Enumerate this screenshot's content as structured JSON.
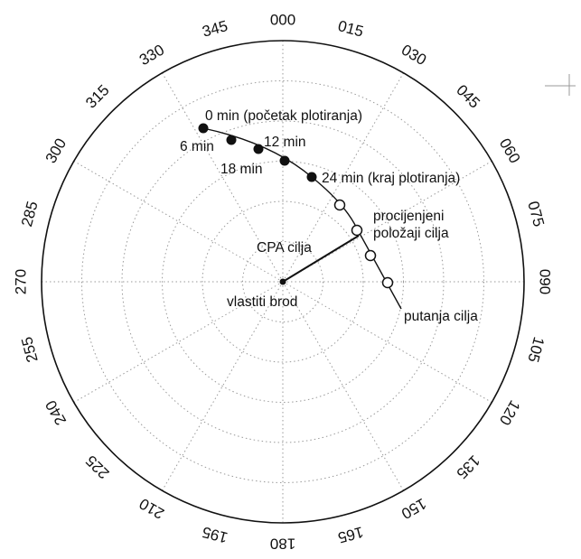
{
  "bearing_labels": [
    "000",
    "015",
    "030",
    "045",
    "060",
    "075",
    "090",
    "105",
    "120",
    "135",
    "150",
    "165",
    "180",
    "195",
    "210",
    "225",
    "240",
    "255",
    "270",
    "285",
    "300",
    "315",
    "330",
    "345"
  ],
  "annotations": {
    "start": "0 min (početak plotiranja)",
    "min6": "6 min",
    "min12": "12 min",
    "min18": "18 min",
    "end": "24 min (kraj plotiranja)",
    "estimated_line1": "procijenjeni",
    "estimated_line2": "položaji cilja",
    "cpa": "CPA cilja",
    "own_ship": "vlastiti brod",
    "target_track": "putanja cilja"
  },
  "colors": {
    "ink": "#111111",
    "grid": "#9a9a9a",
    "background": "#ffffff"
  }
}
